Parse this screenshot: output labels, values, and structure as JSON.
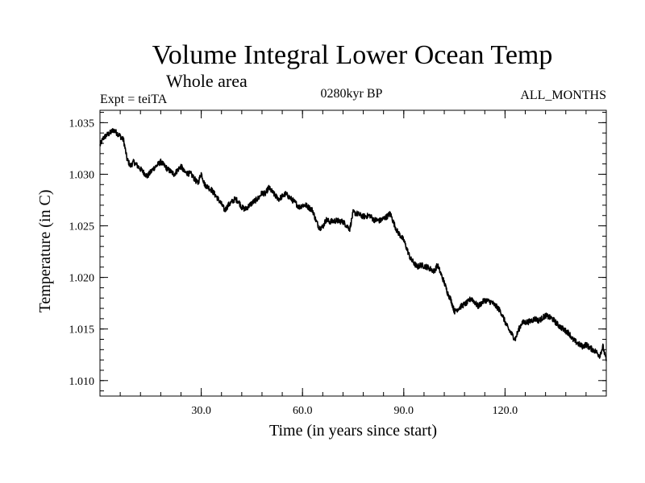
{
  "chart_data": {
    "type": "line",
    "title": "Volume Integral Lower Ocean Temp",
    "subtitle": "Whole area",
    "experiment_label": "Expt = teiTA",
    "period_label": "0280kyr BP",
    "months_label": "ALL_MONTHS",
    "xlabel": "Time (in years since start)",
    "ylabel": "Temperature (in C)",
    "xlim": [
      0,
      150
    ],
    "ylim": [
      1.0085,
      1.0362
    ],
    "x_ticks": [
      30,
      60,
      90,
      120
    ],
    "x_tick_labels": [
      "30.0",
      "60.0",
      "90.0",
      "120.0"
    ],
    "y_ticks": [
      1.01,
      1.015,
      1.02,
      1.025,
      1.03,
      1.035
    ],
    "y_tick_labels": [
      "1.010",
      "1.015",
      "1.020",
      "1.025",
      "1.030",
      "1.035"
    ],
    "grid": false,
    "series": [
      {
        "name": "Volume Integral Lower Ocean Temp",
        "color": "#000000",
        "x": [
          0,
          1,
          2,
          3,
          4,
          5,
          6,
          7,
          8,
          9,
          10,
          12,
          14,
          16,
          18,
          20,
          22,
          24,
          25,
          27,
          29,
          30,
          31,
          33,
          35,
          36,
          37,
          38,
          40,
          41,
          42,
          43,
          45,
          47,
          48,
          49,
          50,
          52,
          53,
          55,
          56,
          58,
          59,
          60,
          61,
          63,
          64,
          65,
          66,
          67,
          68,
          70,
          72,
          74,
          75,
          76,
          78,
          80,
          81,
          83,
          85,
          86,
          87,
          88,
          90,
          92,
          94,
          95,
          97,
          99,
          100,
          102,
          103,
          104,
          105,
          107,
          109,
          110,
          112,
          113,
          114,
          116,
          118,
          119,
          120,
          121,
          123,
          124,
          125,
          127,
          129,
          130,
          132,
          134,
          136,
          138,
          139,
          140,
          142,
          143,
          144,
          145,
          147,
          148,
          149,
          150
        ],
        "y": [
          1.0328,
          1.0335,
          1.0338,
          1.034,
          1.0343,
          1.034,
          1.0337,
          1.0333,
          1.0315,
          1.0308,
          1.0312,
          1.0305,
          1.0298,
          1.0306,
          1.0312,
          1.0305,
          1.03,
          1.0308,
          1.0302,
          1.03,
          1.0291,
          1.0301,
          1.029,
          1.0285,
          1.0276,
          1.0271,
          1.0265,
          1.027,
          1.0276,
          1.0274,
          1.0268,
          1.0266,
          1.0272,
          1.0277,
          1.0282,
          1.0281,
          1.0287,
          1.0279,
          1.0276,
          1.0281,
          1.0278,
          1.0272,
          1.0268,
          1.027,
          1.027,
          1.0265,
          1.0255,
          1.0248,
          1.0249,
          1.0256,
          1.0254,
          1.0255,
          1.0254,
          1.0247,
          1.0263,
          1.0262,
          1.0259,
          1.026,
          1.0256,
          1.0255,
          1.0259,
          1.0262,
          1.0253,
          1.0245,
          1.0236,
          1.0218,
          1.021,
          1.0212,
          1.021,
          1.0206,
          1.0212,
          1.0195,
          1.0185,
          1.0178,
          1.0167,
          1.0172,
          1.0176,
          1.018,
          1.0172,
          1.0175,
          1.0178,
          1.0176,
          1.017,
          1.0165,
          1.0157,
          1.015,
          1.014,
          1.0149,
          1.0156,
          1.0157,
          1.016,
          1.0158,
          1.0163,
          1.016,
          1.0153,
          1.0148,
          1.0146,
          1.014,
          1.0135,
          1.0133,
          1.0135,
          1.0132,
          1.0128,
          1.0124,
          1.0133,
          1.0119
        ]
      }
    ]
  }
}
